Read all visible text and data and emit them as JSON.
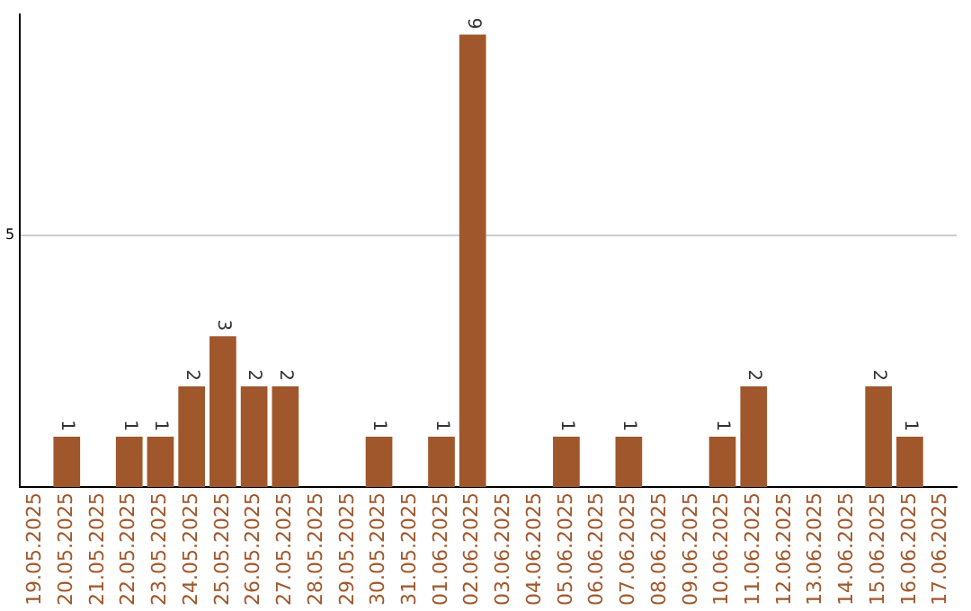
{
  "chart_data": {
    "type": "bar",
    "categories": [
      "19.05.2025",
      "20.05.2025",
      "21.05.2025",
      "22.05.2025",
      "23.05.2025",
      "24.05.2025",
      "25.05.2025",
      "26.05.2025",
      "27.05.2025",
      "28.05.2025",
      "29.05.2025",
      "30.05.2025",
      "31.05.2025",
      "01.06.2025",
      "02.06.2025",
      "03.06.2025",
      "04.06.2025",
      "05.06.2025",
      "06.06.2025",
      "07.06.2025",
      "08.06.2025",
      "09.06.2025",
      "10.06.2025",
      "11.06.2025",
      "12.06.2025",
      "13.06.2025",
      "14.06.2025",
      "15.06.2025",
      "16.06.2025",
      "17.06.2025"
    ],
    "values": [
      0,
      1,
      0,
      1,
      1,
      2,
      3,
      2,
      2,
      0,
      0,
      1,
      0,
      1,
      9,
      0,
      0,
      1,
      0,
      1,
      0,
      0,
      1,
      2,
      0,
      0,
      0,
      2,
      1,
      0
    ],
    "value_labels": [
      null,
      "1",
      null,
      "1",
      "1",
      "2",
      "3",
      "2",
      "2",
      null,
      null,
      "1",
      null,
      "1",
      "9",
      null,
      null,
      "1",
      null,
      "1",
      null,
      null,
      "1",
      "2",
      null,
      null,
      null,
      "2",
      "1",
      null
    ],
    "color": "#a0572b",
    "ylim": [
      0,
      9.4
    ],
    "yticks": [
      5
    ],
    "grid": "y",
    "legend": false
  }
}
